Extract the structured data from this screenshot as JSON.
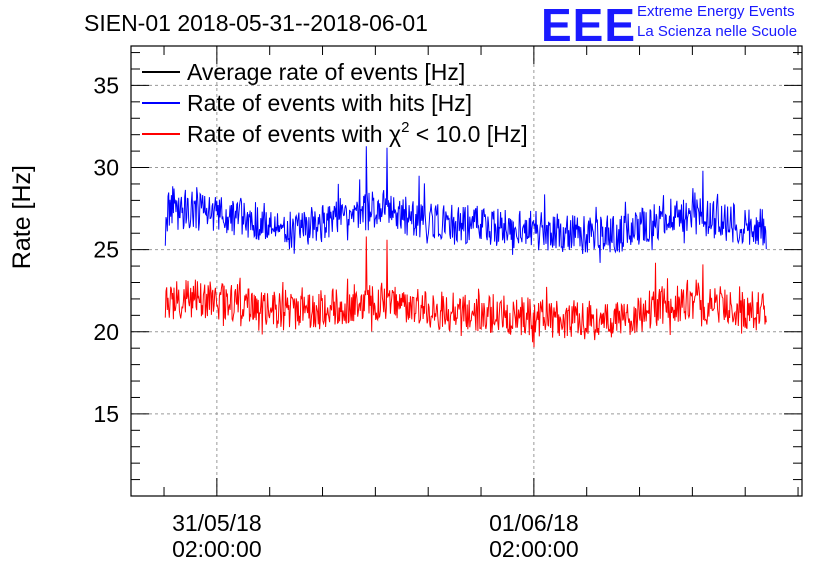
{
  "header": {
    "title": "SIEN-01 2018-05-31--2018-06-01",
    "logo_text": "EEE",
    "logo_line1": "Extreme Energy Events",
    "logo_line2": "La Scienza nelle Scuole"
  },
  "chart_data": {
    "type": "line",
    "title": "SIEN-01 2018-05-31--2018-06-01",
    "ylabel": "Rate [Hz]",
    "xlabel": "",
    "ylim": [
      10,
      37.4
    ],
    "xlim_hours": [
      -6.5,
      44.3
    ],
    "y_ticks": [
      15,
      20,
      25,
      30,
      35
    ],
    "x_ticks": [
      {
        "hour": 0,
        "label_date": "31/05/18",
        "label_time": "02:00:00"
      },
      {
        "hour": 24,
        "label_date": "01/06/18",
        "label_time": "02:00:00"
      }
    ],
    "grid": true,
    "legend_position": "top-left",
    "series": [
      {
        "name": "Average rate of events [Hz]",
        "color": "#000000",
        "x_hours": [],
        "values": []
      },
      {
        "name": "Rate of events with hits [Hz]",
        "color": "#0000ff",
        "x_hours": [
          -3.9,
          -2,
          0,
          2,
          4,
          6,
          8,
          10,
          12,
          14,
          16,
          18,
          20,
          22,
          24,
          26,
          28,
          30,
          32,
          34,
          36,
          38,
          40,
          41.6
        ],
        "values": [
          27.2,
          27.4,
          27.2,
          27.0,
          26.6,
          26.1,
          26.6,
          27.2,
          27.4,
          27.1,
          26.8,
          26.5,
          26.6,
          26.3,
          26.2,
          26.0,
          25.9,
          25.9,
          26.3,
          26.9,
          27.1,
          26.8,
          26.5,
          26.4
        ],
        "spikes": [
          {
            "x_hours": 11.3,
            "value": 31.3
          },
          {
            "x_hours": 12.9,
            "value": 31.2
          },
          {
            "x_hours": 15.3,
            "value": 29.5
          },
          {
            "x_hours": 36.8,
            "value": 29.8
          }
        ]
      },
      {
        "name": "Rate of events with χ² < 10.0 [Hz]",
        "color": "#ff0000",
        "x_hours": [
          -3.9,
          -2,
          0,
          2,
          4,
          6,
          8,
          10,
          12,
          14,
          16,
          18,
          20,
          22,
          24,
          26,
          28,
          30,
          32,
          34,
          36,
          38,
          40,
          41.6
        ],
        "values": [
          21.8,
          22.0,
          21.9,
          21.7,
          21.5,
          21.1,
          21.3,
          21.7,
          21.9,
          21.6,
          21.4,
          21.1,
          21.2,
          21.0,
          20.9,
          20.8,
          20.7,
          20.6,
          21.1,
          21.7,
          21.9,
          21.6,
          21.3,
          21.2
        ],
        "spikes": [
          {
            "x_hours": 11.3,
            "value": 25.8
          },
          {
            "x_hours": 12.9,
            "value": 25.6
          },
          {
            "x_hours": 33.2,
            "value": 24.2
          },
          {
            "x_hours": 36.8,
            "value": 24.1
          }
        ]
      }
    ]
  }
}
